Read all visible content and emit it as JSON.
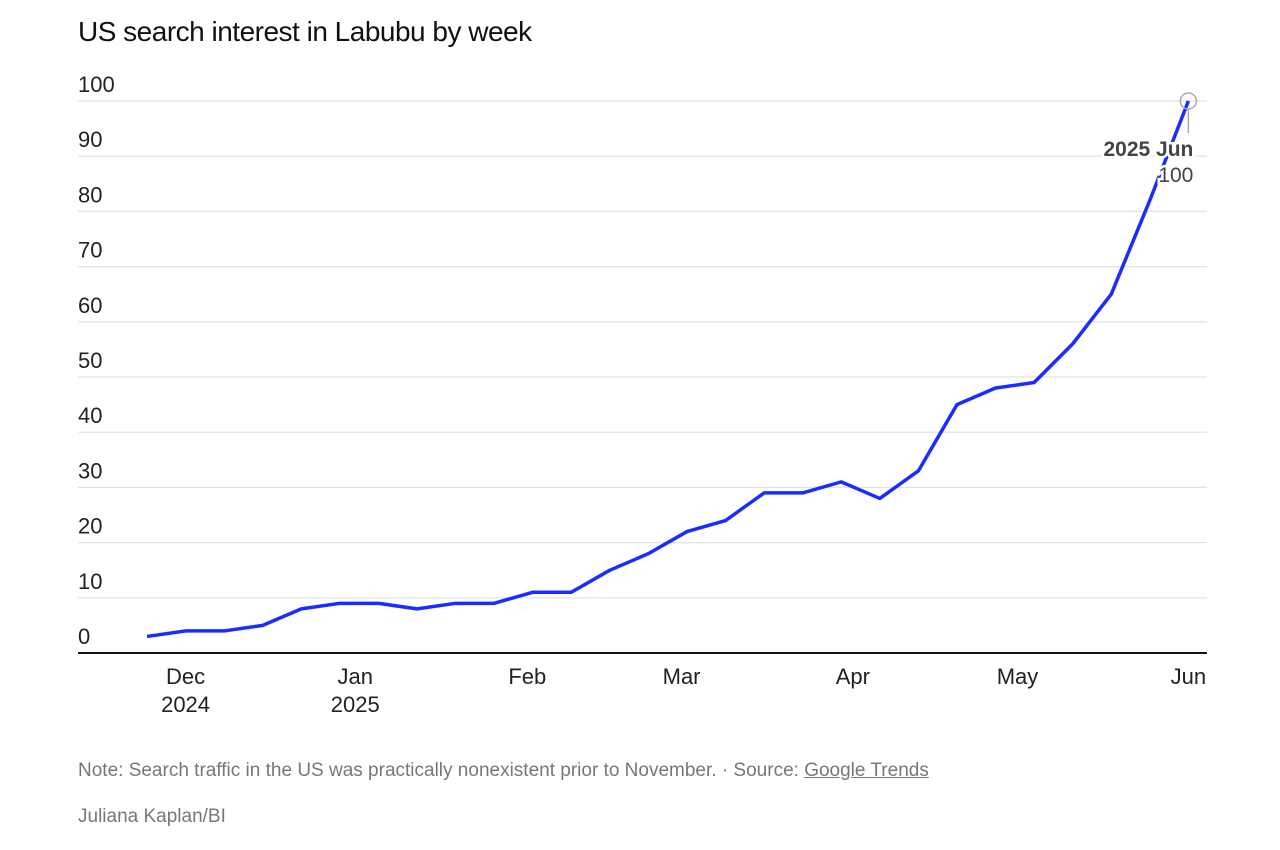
{
  "chart_data": {
    "type": "line",
    "title": "US search interest in Labubu by week",
    "xlabel": "",
    "ylabel": "",
    "ylim": [
      0,
      100
    ],
    "yticks": [
      0,
      10,
      20,
      30,
      40,
      50,
      60,
      70,
      80,
      90,
      100
    ],
    "grid": true,
    "x_weeks": [
      "2024-11-24",
      "2024-12-01",
      "2024-12-08",
      "2024-12-15",
      "2024-12-22",
      "2024-12-29",
      "2025-01-05",
      "2025-01-12",
      "2025-01-19",
      "2025-01-26",
      "2025-02-02",
      "2025-02-09",
      "2025-02-16",
      "2025-02-23",
      "2025-03-02",
      "2025-03-09",
      "2025-03-16",
      "2025-03-23",
      "2025-03-30",
      "2025-04-06",
      "2025-04-13",
      "2025-04-20",
      "2025-04-27",
      "2025-05-04",
      "2025-05-11",
      "2025-05-18",
      "2025-05-25",
      "2025-06-01"
    ],
    "series": [
      {
        "name": "Search interest",
        "color": "#1a2cff",
        "values": [
          3,
          4,
          4,
          5,
          8,
          9,
          9,
          8,
          9,
          9,
          11,
          11,
          15,
          18,
          22,
          24,
          29,
          29,
          31,
          28,
          33,
          45,
          48,
          49,
          56,
          65,
          82,
          100
        ]
      }
    ],
    "xticks": [
      {
        "week": 1,
        "line1": "Dec",
        "line2": "2024"
      },
      {
        "week": 5.4,
        "line1": "Jan",
        "line2": "2025"
      },
      {
        "week": 9.86,
        "line1": "Feb",
        "line2": ""
      },
      {
        "week": 13.86,
        "line1": "Mar",
        "line2": ""
      },
      {
        "week": 18.3,
        "line1": "Apr",
        "line2": ""
      },
      {
        "week": 22.57,
        "line1": "May",
        "line2": ""
      },
      {
        "week": 27,
        "line1": "Jun",
        "line2": ""
      }
    ],
    "annotation": {
      "label": "2025 Jun",
      "value": "100"
    }
  },
  "footer": {
    "note": "Note: Search traffic in the US was practically nonexistent prior to November. · Source: ",
    "source_link": "Google Trends",
    "credit": "Juliana Kaplan/BI"
  }
}
